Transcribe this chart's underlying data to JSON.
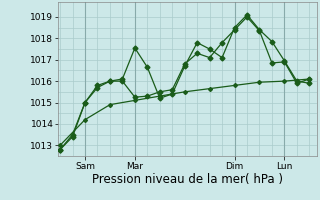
{
  "xlabel": "Pression niveau de la mer( hPa )",
  "ylim": [
    1012.5,
    1019.7
  ],
  "yticks": [
    1013,
    1014,
    1015,
    1016,
    1017,
    1018,
    1019
  ],
  "bg_color": "#cce8e8",
  "grid_color": "#aacccc",
  "line_color": "#1a5c1a",
  "line_color_smooth": "#1a5c1a",
  "series1_x": [
    0.0,
    0.5,
    1.0,
    1.5,
    2.0,
    2.5,
    3.0,
    3.5,
    4.0,
    4.5,
    5.0,
    5.5,
    6.0,
    6.5,
    7.0,
    7.5,
    8.0,
    8.5,
    9.0,
    9.5,
    10.0
  ],
  "series1_y": [
    1012.8,
    1013.4,
    1015.0,
    1015.8,
    1016.0,
    1016.1,
    1017.55,
    1016.65,
    1015.2,
    1015.4,
    1016.7,
    1017.8,
    1017.5,
    1017.1,
    1018.5,
    1019.1,
    1018.4,
    1017.85,
    1016.95,
    1016.0,
    1015.9
  ],
  "series2_x": [
    0.0,
    0.5,
    1.0,
    1.5,
    2.0,
    2.5,
    3.0,
    3.5,
    4.0,
    4.5,
    5.0,
    5.5,
    6.0,
    6.5,
    7.0,
    7.5,
    8.0,
    8.5,
    9.0,
    9.5,
    10.0
  ],
  "series2_y": [
    1012.8,
    1013.5,
    1015.0,
    1015.7,
    1016.0,
    1016.0,
    1015.25,
    1015.3,
    1015.5,
    1015.6,
    1016.8,
    1017.3,
    1017.1,
    1017.8,
    1018.4,
    1019.0,
    1018.35,
    1016.85,
    1016.9,
    1015.9,
    1016.1
  ],
  "series3_x": [
    0.0,
    1.0,
    2.0,
    3.0,
    4.0,
    5.0,
    6.0,
    7.0,
    8.0,
    9.0,
    10.0
  ],
  "series3_y": [
    1013.0,
    1014.2,
    1014.9,
    1015.1,
    1015.3,
    1015.5,
    1015.65,
    1015.8,
    1015.95,
    1016.0,
    1016.1
  ],
  "marker": "D",
  "markersize": 2.5,
  "linewidth": 0.9,
  "tick_fontsize": 6.5,
  "label_fontsize": 8.5,
  "xlim": [
    -0.1,
    10.3
  ],
  "xtick_positions": [
    1,
    3,
    7,
    9
  ],
  "xtick_labels": [
    "Sam",
    "Mar",
    "Dim",
    "Lun"
  ],
  "vline_positions": [
    1,
    3,
    7,
    9
  ]
}
